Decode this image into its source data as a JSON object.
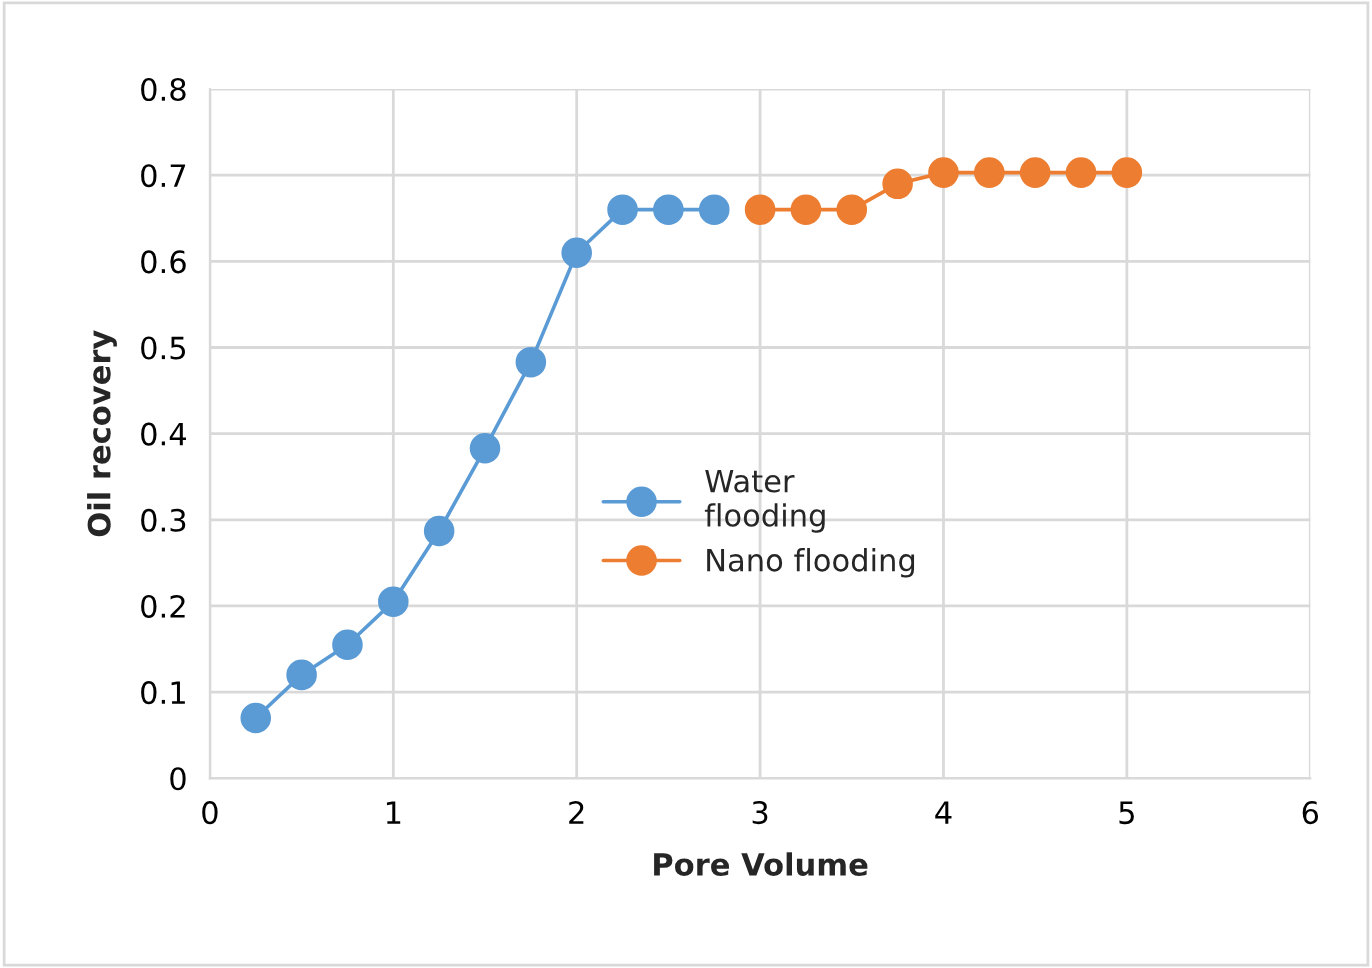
{
  "chart_data": {
    "type": "line",
    "xlabel": "Pore Volume",
    "ylabel": "Oil recovery",
    "series": [
      {
        "name": "Water\nflooding",
        "color": "#5b9bd5",
        "x": [
          0.25,
          0.5,
          0.75,
          1,
          1.25,
          1.5,
          1.75,
          2,
          2.25,
          2.5,
          2.75
        ],
        "values": [
          0.07,
          0.12,
          0.155,
          0.205,
          0.287,
          0.383,
          0.483,
          0.61,
          0.66,
          0.66,
          0.66
        ]
      },
      {
        "name": "Nano flooding",
        "color": "#ed7d31",
        "x": [
          3,
          3.25,
          3.5,
          3.75,
          4,
          4.25,
          4.5,
          4.75,
          5
        ],
        "values": [
          0.66,
          0.66,
          0.66,
          0.69,
          0.703,
          0.703,
          0.703,
          0.703,
          0.703
        ]
      }
    ],
    "xlim": [
      0,
      6
    ],
    "xticks": [
      0,
      1,
      2,
      3,
      4,
      5,
      6
    ],
    "ylim": [
      0,
      0.8
    ],
    "yticks": [
      0,
      0.1,
      0.2,
      0.3,
      0.4,
      0.5,
      0.6,
      0.7,
      0.8
    ],
    "grid": true,
    "legend": "center",
    "marker": "circle",
    "line_style": "solid"
  }
}
